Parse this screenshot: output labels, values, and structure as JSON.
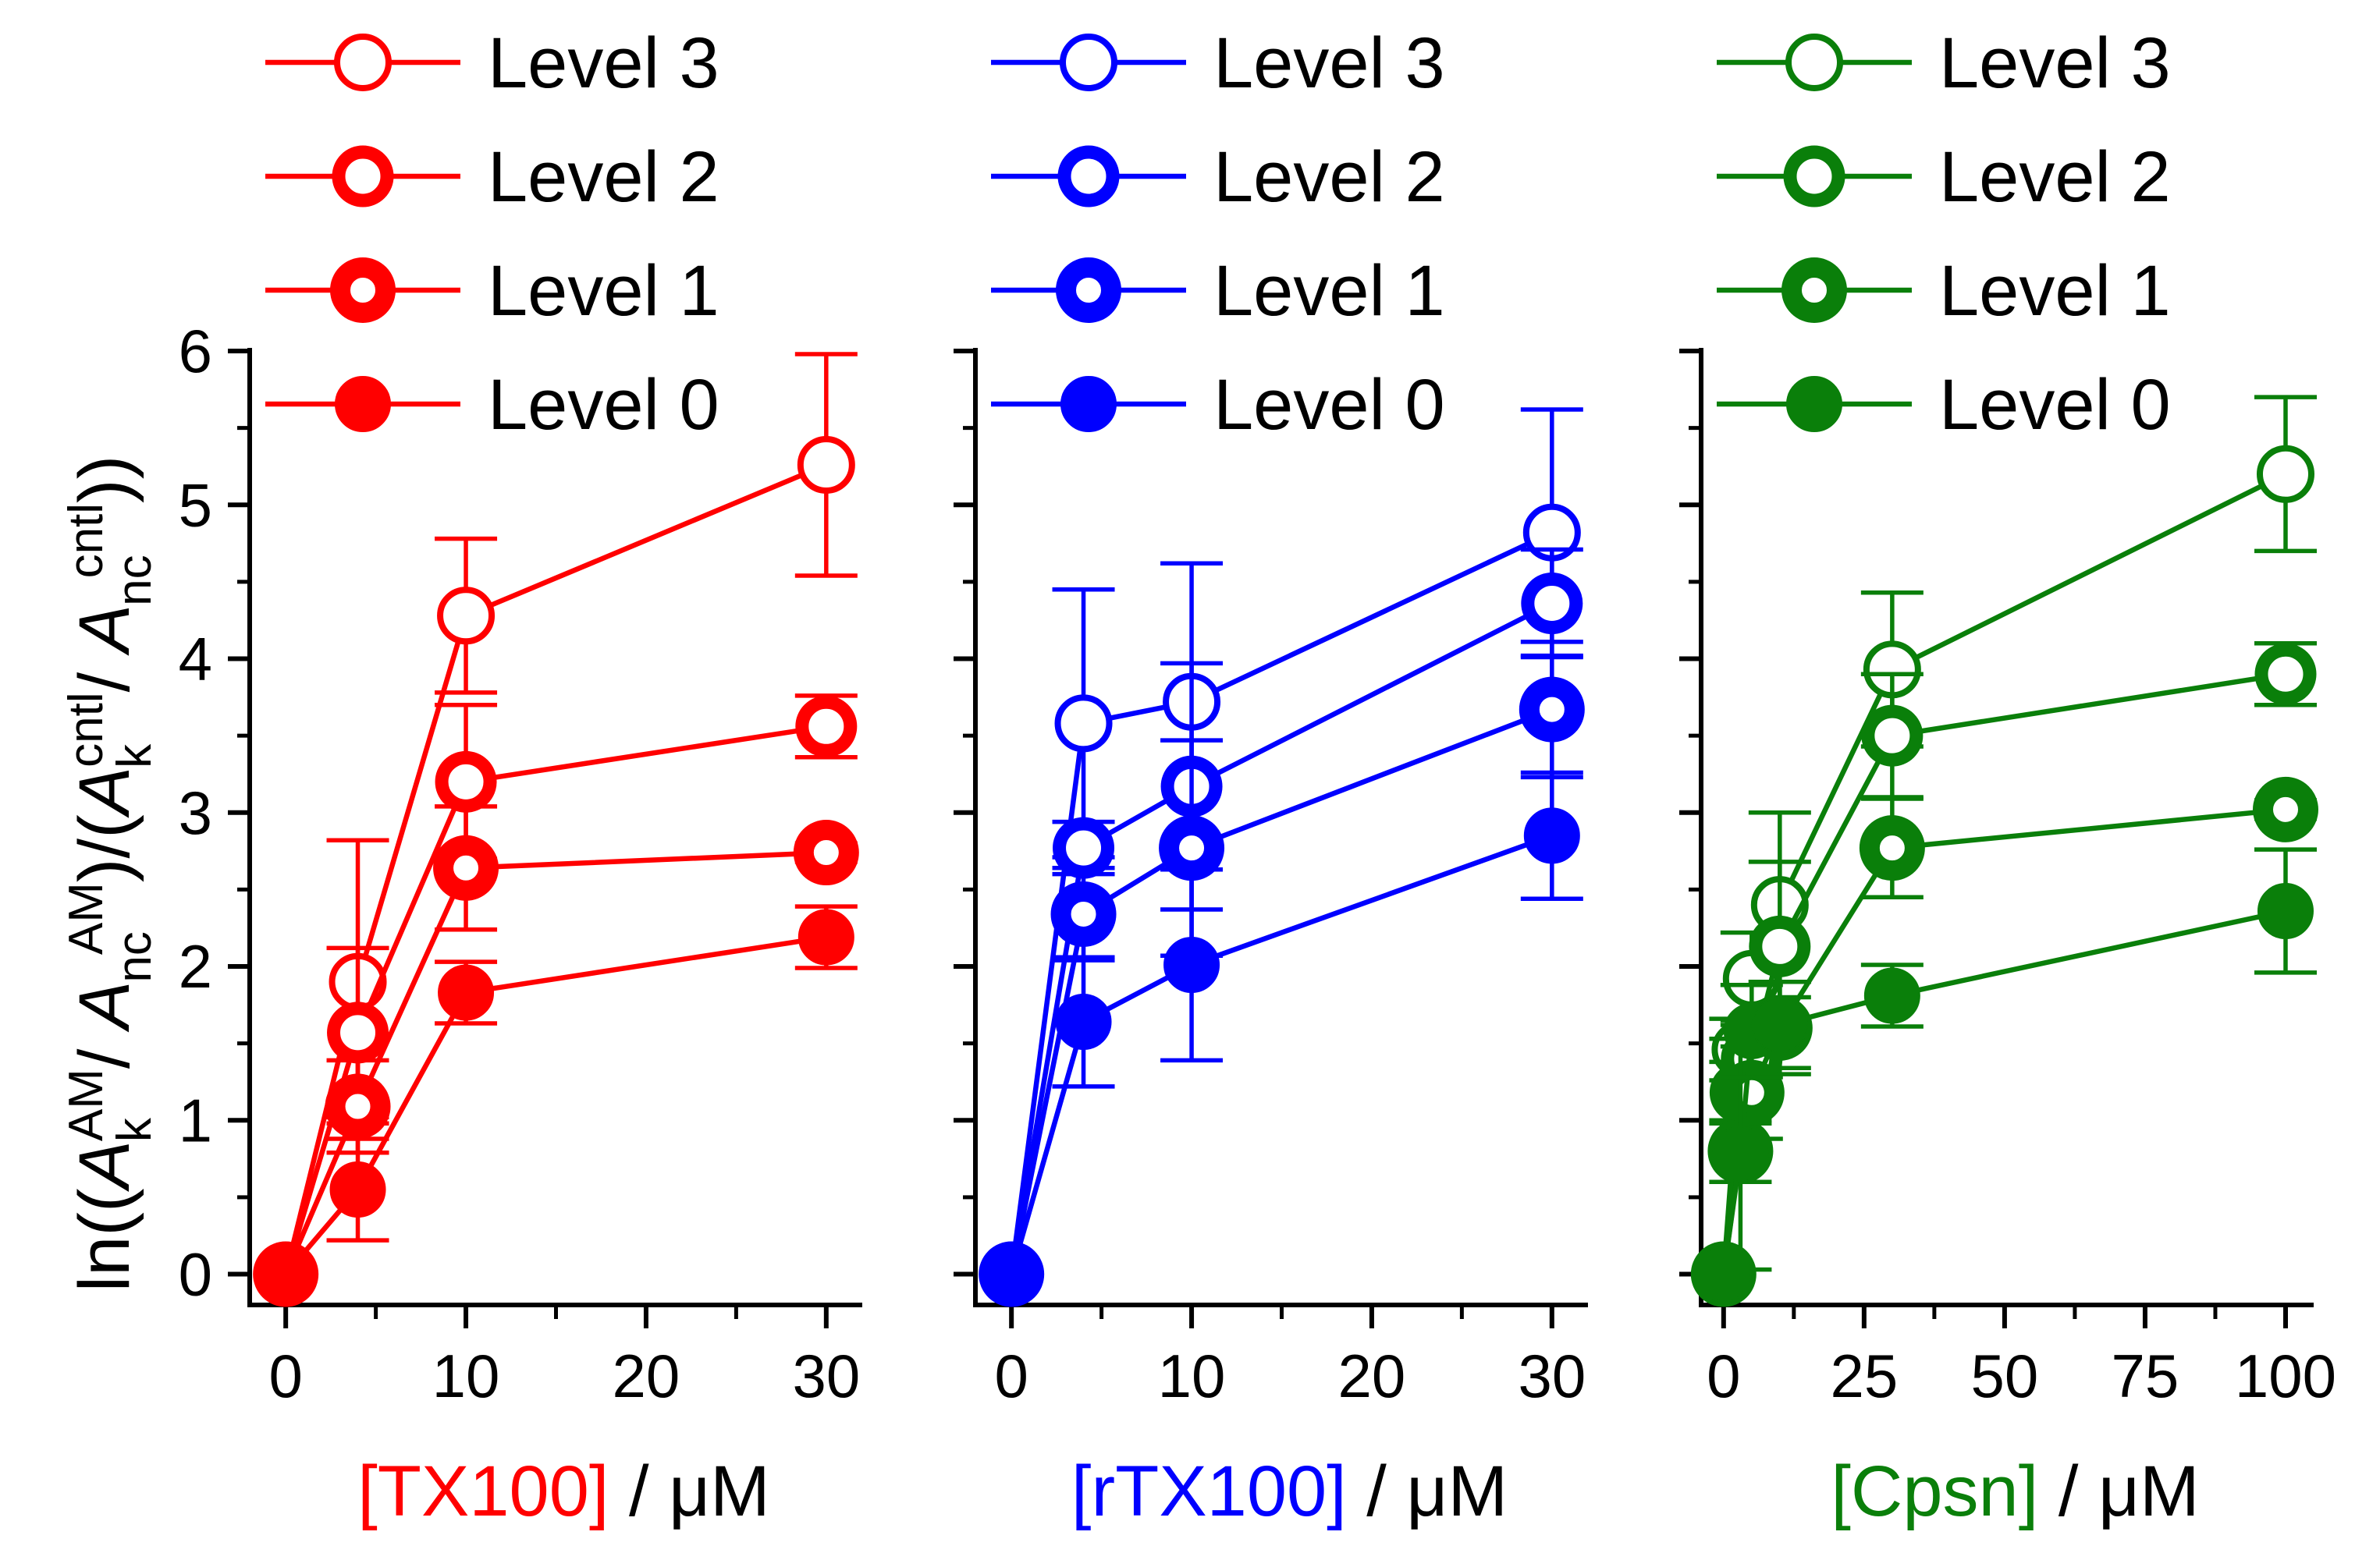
{
  "chart_data": [
    {
      "type": "line",
      "color": "#ff0000",
      "xlabel_prefix": "[TX100]",
      "xlabel_suffix": " / μM",
      "ylabel": "ln((A_k^AM/ A_nc^AM)/(A_k^cntl/ A_nc^cntl))",
      "xlim": [
        -2,
        32
      ],
      "ylim": [
        -0.2,
        6
      ],
      "xticks": [
        0,
        10,
        20,
        30
      ],
      "xtick_labels": [
        "0",
        "10",
        "20",
        "30"
      ],
      "yticks": [
        0,
        1,
        2,
        3,
        4,
        5,
        6
      ],
      "ytick_labels": [
        "0",
        "1",
        "2",
        "3",
        "4",
        "5",
        "6"
      ],
      "x": [
        0,
        4,
        10,
        30
      ],
      "series": [
        {
          "name": "Level 3",
          "values": [
            0,
            1.9,
            4.28,
            5.26
          ],
          "errors": [
            0,
            0.92,
            0.5,
            0.72
          ]
        },
        {
          "name": "Level 2",
          "values": [
            0,
            1.57,
            3.2,
            3.56
          ],
          "errors": [
            0,
            0.55,
            0.5,
            0.2
          ]
        },
        {
          "name": "Level 1",
          "values": [
            0,
            1.09,
            2.64,
            2.74
          ],
          "errors": [
            0,
            0.3,
            0.4,
            0.06
          ]
        },
        {
          "name": "Level 0",
          "values": [
            0,
            0.55,
            1.83,
            2.19
          ],
          "errors": [
            0,
            0.33,
            0.2,
            0.2
          ]
        }
      ]
    },
    {
      "type": "line",
      "color": "#0000ff",
      "xlabel_prefix": "[rTX100]",
      "xlabel_suffix": " / μM",
      "xlim": [
        -2,
        32
      ],
      "ylim": [
        -0.2,
        6
      ],
      "xticks": [
        0,
        10,
        20,
        30
      ],
      "xtick_labels": [
        "0",
        "10",
        "20",
        "30"
      ],
      "yticks": [
        0,
        1,
        2,
        3,
        4,
        5,
        6
      ],
      "x": [
        0,
        4,
        10,
        30
      ],
      "series": [
        {
          "name": "Level 3",
          "values": [
            0,
            3.58,
            3.72,
            4.82
          ],
          "errors": [
            0,
            0.87,
            0.9,
            0.8
          ]
        },
        {
          "name": "Level 2",
          "values": [
            0,
            2.77,
            3.17,
            4.36
          ],
          "errors": [
            0,
            0.17,
            0.8,
            0.35
          ]
        },
        {
          "name": "Level 1",
          "values": [
            0,
            2.34,
            2.77,
            3.67
          ],
          "errors": [
            0,
            0.3,
            0.7,
            0.44
          ]
        },
        {
          "name": "Level 0",
          "values": [
            0,
            1.64,
            2.01,
            2.85
          ],
          "errors": [
            0,
            0.42,
            0.62,
            0.41
          ]
        }
      ]
    },
    {
      "type": "line",
      "color": "#0a7f0a",
      "xlabel_prefix": "[Cpsn]",
      "xlabel_suffix": " / μM",
      "xlim": [
        -4,
        105
      ],
      "ylim": [
        -0.2,
        6
      ],
      "xticks": [
        0,
        25,
        50,
        75,
        100
      ],
      "xtick_labels": [
        "0",
        "25",
        "50",
        "75",
        "100"
      ],
      "yticks": [
        0,
        1,
        2,
        3,
        4,
        5,
        6
      ],
      "x": [
        0,
        3,
        5,
        10,
        30,
        100
      ],
      "series": [
        {
          "name": "Level 3",
          "values": [
            0,
            1.46,
            1.92,
            2.4,
            3.93,
            5.2
          ],
          "errors": [
            0,
            0.2,
            0.3,
            0.6,
            0.5,
            0.5
          ]
        },
        {
          "name": "Level 2",
          "values": [
            0,
            1.18,
            1.4,
            2.13,
            3.5,
            3.9
          ],
          "errors": [
            0,
            0.2,
            0.25,
            0.55,
            0.4,
            0.2
          ]
        },
        {
          "name": "Level 1",
          "values": [
            0,
            0.8,
            1.18,
            1.6,
            2.77,
            3.02
          ],
          "errors": [
            0,
            0.2,
            0.3,
            0.3,
            0.32,
            0.06
          ]
        },
        {
          "name": "Level 0",
          "values": [
            0,
            0.78,
            1.58,
            1.62,
            1.81,
            2.36
          ],
          "errors": [
            0,
            0.75,
            0.3,
            0.28,
            0.2,
            0.4
          ]
        }
      ]
    }
  ]
}
